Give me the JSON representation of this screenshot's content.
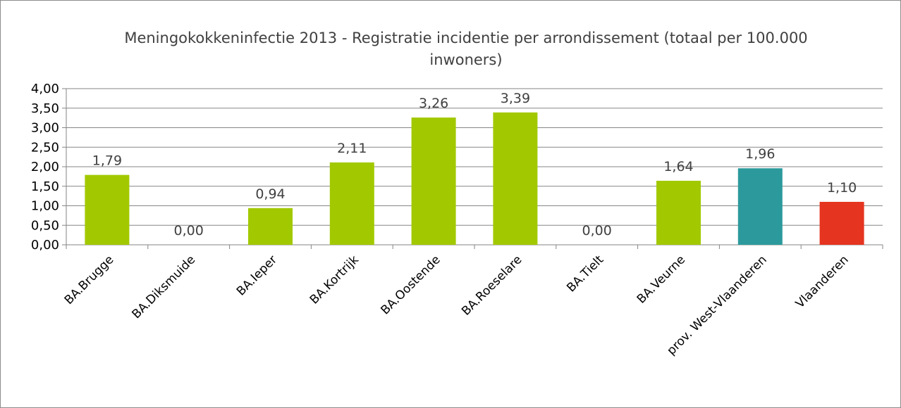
{
  "chart_data": {
    "type": "bar",
    "title": "Meningokokkeninfectie 2013 - Registratie incidentie per arrondissement (totaal per 100.000 inwoners)",
    "categories": [
      "BA.Brugge",
      "BA.Diksmuide",
      "BA.Ieper",
      "BA.Kortrijk",
      "BA.Oostende",
      "BA.Roeselare",
      "BA.Tielt",
      "BA.Veurne",
      "prov. West-Vlaanderen",
      "Vlaanderen"
    ],
    "values": [
      1.79,
      0.0,
      0.94,
      2.11,
      3.26,
      3.39,
      0.0,
      1.64,
      1.96,
      1.1
    ],
    "value_labels": [
      "1,79",
      "0,00",
      "0,94",
      "2,11",
      "3,26",
      "3,39",
      "0,00",
      "1,64",
      "1,96",
      "1,10"
    ],
    "bar_colors": [
      "#a2c900",
      "#a2c900",
      "#a2c900",
      "#a2c900",
      "#a2c900",
      "#a2c900",
      "#a2c900",
      "#a2c900",
      "#2c9a9c",
      "#e5341f"
    ],
    "ylim": [
      0,
      4
    ],
    "yticks": [
      0,
      0.5,
      1,
      1.5,
      2,
      2.5,
      3,
      3.5,
      4
    ],
    "ytick_labels": [
      "0,00",
      "0,50",
      "1,00",
      "1,50",
      "2,00",
      "2,50",
      "3,00",
      "3,50",
      "4,00"
    ],
    "grid": true,
    "legend": "none",
    "xlabel": "",
    "ylabel": ""
  },
  "colors": {
    "gridline": "#868686",
    "axis": "#868686"
  }
}
